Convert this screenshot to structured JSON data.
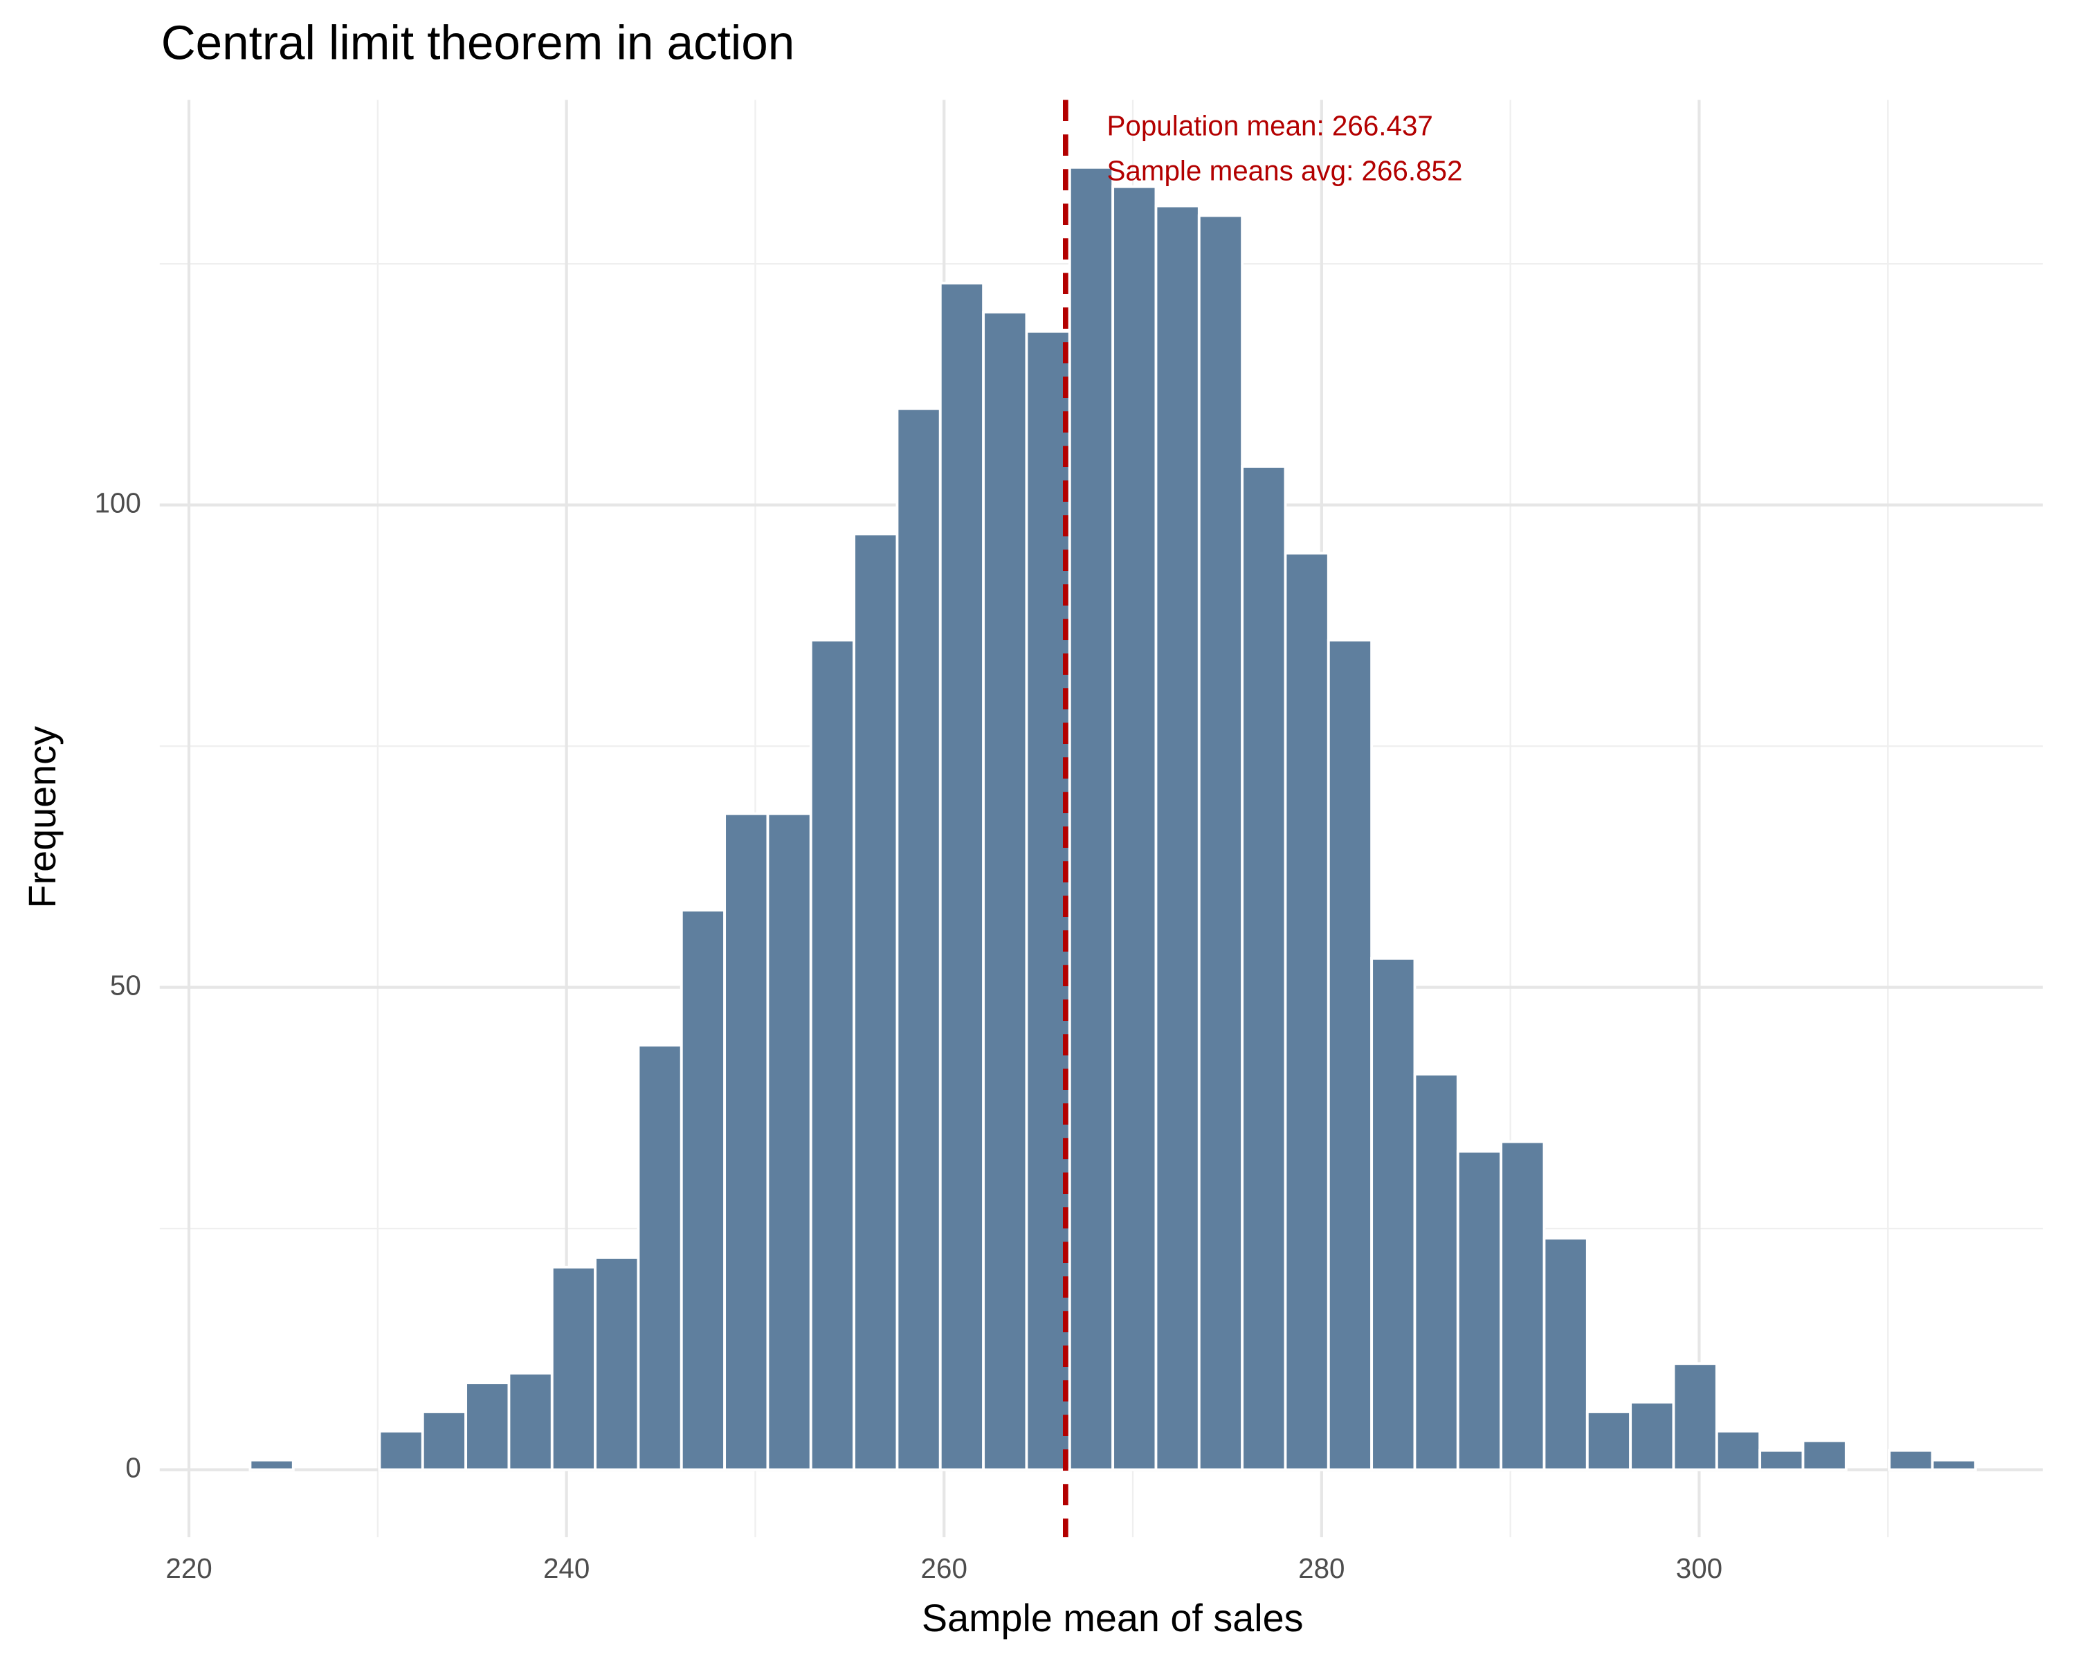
{
  "chart_data": {
    "type": "histogram",
    "title": "Central limit theorem in action",
    "x_label": "Sample mean of sales",
    "y_label": "Frequency",
    "bins": [
      223.24,
      225.525,
      227.81,
      230.095,
      232.38,
      234.665,
      236.95,
      239.235,
      241.52,
      243.805,
      246.09,
      248.375,
      250.66,
      252.945,
      255.23,
      257.515,
      259.8,
      262.085,
      264.37,
      266.655,
      268.94,
      271.225,
      273.51,
      275.795,
      278.08,
      280.365,
      282.65,
      284.935,
      287.22,
      289.505,
      291.79,
      294.075,
      296.36,
      298.645,
      300.93,
      303.215,
      305.5,
      307.785,
      310.07,
      312.355,
      314.64
    ],
    "counts": [
      1,
      0,
      0,
      4,
      6,
      9,
      10,
      21,
      22,
      44,
      58,
      68,
      68,
      86,
      97,
      110,
      123,
      120,
      118,
      135,
      133,
      131,
      130,
      104,
      95,
      86,
      53,
      41,
      33,
      34,
      24,
      6,
      7,
      11,
      4,
      2,
      3,
      0,
      2,
      1
    ],
    "color": "#5f7f9e",
    "xlim": [
      218.45,
      318.2
    ],
    "ylim": [
      -7,
      142
    ],
    "xticks": [
      220,
      240,
      260,
      280,
      300
    ],
    "yticks": [
      0,
      50,
      100
    ],
    "x_minor_grid": [
      230,
      250,
      270,
      290,
      310
    ],
    "y_minor_grid": [
      25,
      75,
      125
    ],
    "grid": true,
    "mean_line": 266.437,
    "mean_line_color": "#b30000",
    "annotations": [
      "Population mean: 266.437",
      "Sample means avg: 266.852"
    ]
  }
}
